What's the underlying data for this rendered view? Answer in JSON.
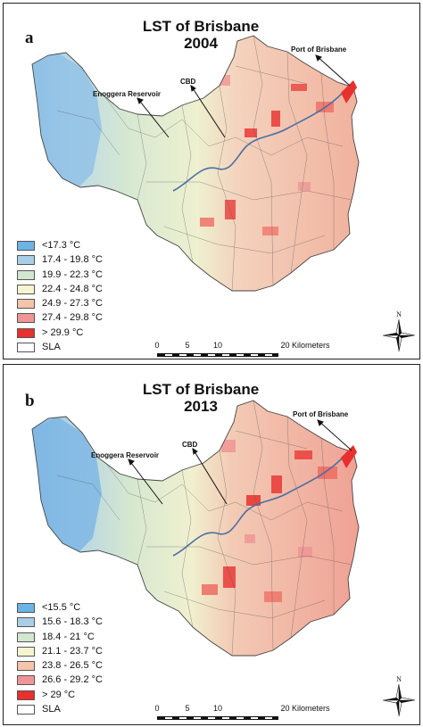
{
  "panel_a": {
    "letter": "a",
    "title_line1": "LST of Brisbane",
    "title_line2": "2004",
    "labels": {
      "enoggera": "Enoggera Reservoir",
      "cbd": "CBD",
      "port": "Port of Brisbane"
    },
    "legend": [
      {
        "label": "<17.3 °C",
        "color": "#6cb3e6"
      },
      {
        "label": "17.4 - 19.8 °C",
        "color": "#a9cfe6"
      },
      {
        "label": "19.9 - 22.3 °C",
        "color": "#d3e6cf"
      },
      {
        "label": "22.4 - 24.8 °C",
        "color": "#f7f5cf"
      },
      {
        "label": "24.9 - 27.3 °C",
        "color": "#f6c4aa"
      },
      {
        "label": "27.4 - 29.8 °C",
        "color": "#ef9595"
      },
      {
        "label": "> 29.9 °C",
        "color": "#e8302e"
      },
      {
        "label": "SLA",
        "color": "#ffffff"
      }
    ],
    "scale": {
      "ticks": [
        "0",
        "5",
        "10",
        "20 Kilometers"
      ]
    },
    "compass": {
      "north": "N"
    }
  },
  "panel_b": {
    "letter": "b",
    "title_line1": "LST of Brisbane",
    "title_line2": "2013",
    "labels": {
      "enoggera": "Enoggera Reservoir",
      "cbd": "CBD",
      "port": "Port of Brisbane"
    },
    "legend": [
      {
        "label": "<15.5 °C",
        "color": "#6cb3e6"
      },
      {
        "label": "15.6 - 18.3 °C",
        "color": "#a9cfe6"
      },
      {
        "label": "18.4 - 21 °C",
        "color": "#d3e6cf"
      },
      {
        "label": "21.1 - 23.7 °C",
        "color": "#f7f5cf"
      },
      {
        "label": "23.8 - 26.5 °C",
        "color": "#f6c4aa"
      },
      {
        "label": "26.6 - 29.2 °C",
        "color": "#ef9595"
      },
      {
        "label": "> 29 °C",
        "color": "#e8302e"
      },
      {
        "label": "SLA",
        "color": "#ffffff"
      }
    ],
    "scale": {
      "ticks": [
        "0",
        "5",
        "10",
        "20 Kilometers"
      ]
    },
    "compass": {
      "north": "N"
    }
  }
}
